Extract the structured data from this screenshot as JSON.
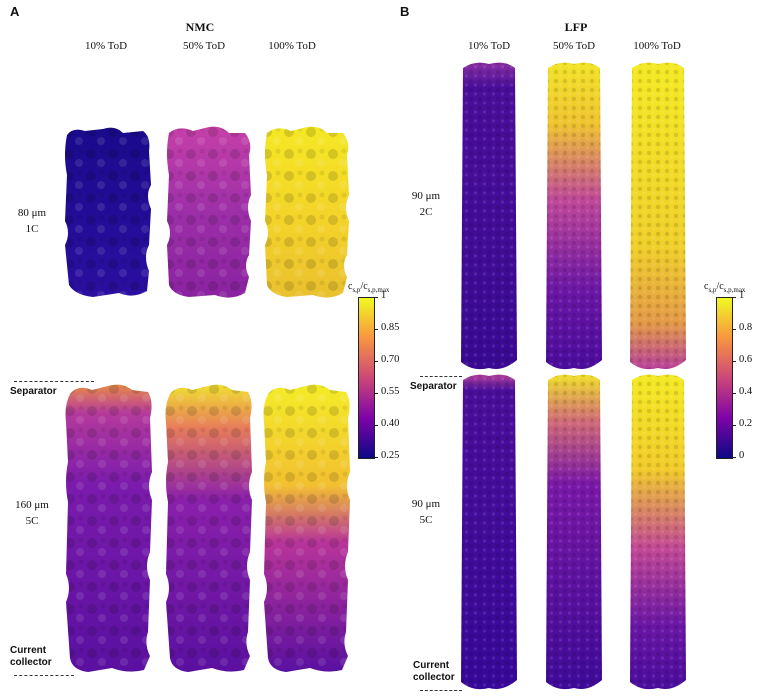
{
  "panels": {
    "A": {
      "letter": "A",
      "title": "NMC",
      "columns": [
        "10% ToD",
        "50% ToD",
        "100% ToD"
      ],
      "rows": [
        {
          "thickness": "80 μm",
          "rate": "1C"
        },
        {
          "thickness": "160 μm",
          "rate": "5C"
        }
      ],
      "colorbar": {
        "title_main": "c",
        "title_sub1": "s,p",
        "title_sep": "/c",
        "title_sub2": "s,p,max",
        "ticks": [
          "1",
          "0.85",
          "0.70",
          "0.55",
          "0.40",
          "0.25"
        ]
      },
      "separator_label": "Separator",
      "collector_label_1": "Current",
      "collector_label_2": "collector"
    },
    "B": {
      "letter": "B",
      "title": "LFP",
      "columns": [
        "10% ToD",
        "50% ToD",
        "100% ToD"
      ],
      "rows": [
        {
          "thickness": "90 μm",
          "rate": "2C"
        },
        {
          "thickness": "90 μm",
          "rate": "5C"
        }
      ],
      "colorbar": {
        "title_main": "c",
        "title_sub1": "s,p",
        "title_sep": "/c",
        "title_sub2": "s,p,max",
        "ticks": [
          "1",
          "0.8",
          "0.6",
          "0.4",
          "0.2",
          "0"
        ]
      },
      "separator_label": "Separator",
      "collector_label_1": "Current",
      "collector_label_2": "collector"
    }
  },
  "colors": {
    "plasma_top": "#f0f921",
    "plasma_mid_hi": "#f89540",
    "plasma_mid": "#cc4778",
    "plasma_mid_lo": "#7e03a8",
    "plasma_bottom": "#0d0887"
  }
}
